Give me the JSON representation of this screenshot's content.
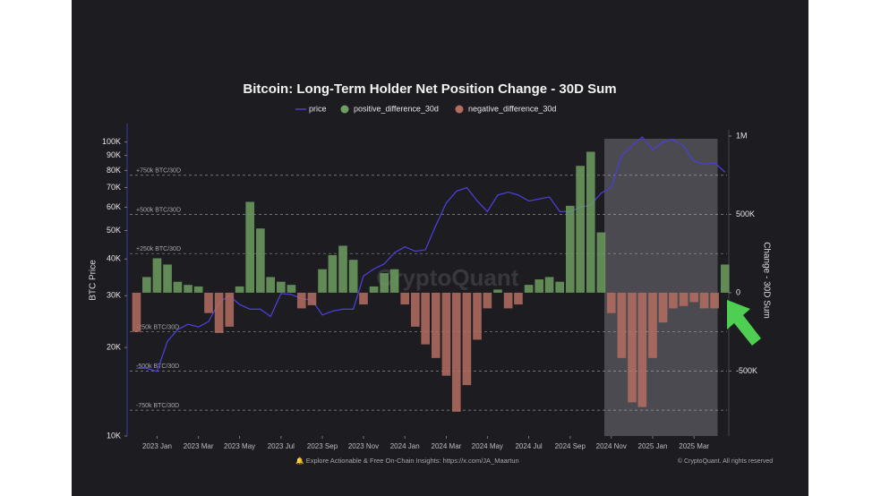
{
  "chart_data": {
    "type": "bar-line",
    "title": "Bitcoin: Long-Term Holder Net Position Change - 30D Sum",
    "y_label": "BTC Price",
    "y2_label": "Change - 30D Sum",
    "watermark": "CryptoQuant",
    "footer_left": "🔔 Explore Actionable & Free On-Chain Insights: https://x.com/JA_Maartun",
    "footer_right": "© CryptoQuant. All rights reserved",
    "log_y": true,
    "x": [
      2022.917,
      2022.958,
      2023.0,
      2023.042,
      2023.083,
      2023.125,
      2023.167,
      2023.208,
      2023.25,
      2023.292,
      2023.333,
      2023.375,
      2023.417,
      2023.458,
      2023.5,
      2023.542,
      2023.583,
      2023.625,
      2023.667,
      2023.708,
      2023.75,
      2023.792,
      2023.833,
      2023.875,
      2023.917,
      2023.958,
      2024.0,
      2024.042,
      2024.083,
      2024.125,
      2024.167,
      2024.208,
      2024.25,
      2024.292,
      2024.333,
      2024.375,
      2024.417,
      2024.458,
      2024.5,
      2024.542,
      2024.583,
      2024.625,
      2024.667,
      2024.708,
      2024.75,
      2024.792,
      2024.833,
      2024.875,
      2024.917,
      2024.958,
      2025.0,
      2025.042,
      2025.083,
      2025.125,
      2025.167,
      2025.208,
      2025.25,
      2025.292
    ],
    "series": [
      {
        "name": "price",
        "color": "#4b3fd6",
        "values": [
          17000,
          17000,
          16600,
          21000,
          23000,
          24000,
          23500,
          24500,
          28500,
          30000,
          28000,
          27000,
          27000,
          25500,
          30500,
          30300,
          29300,
          29000,
          25800,
          26600,
          27000,
          27000,
          35000,
          37000,
          38500,
          42000,
          44000,
          42500,
          43000,
          52000,
          62000,
          68000,
          70000,
          63000,
          58000,
          66000,
          67500,
          66000,
          63000,
          64000,
          65000,
          58000,
          58000,
          60000,
          61000,
          67000,
          70000,
          90000,
          97000,
          104000,
          94000,
          100000,
          102000,
          97000,
          86000,
          84000,
          85000,
          79000
        ]
      },
      {
        "name": "positive_difference_30d",
        "color": "#6f9e60",
        "axis": "y2",
        "values": [
          null,
          100000,
          220000,
          180000,
          70000,
          50000,
          40000,
          null,
          null,
          null,
          40000,
          580000,
          410000,
          100000,
          70000,
          50000,
          null,
          null,
          150000,
          240000,
          300000,
          210000,
          null,
          40000,
          125000,
          150000,
          null,
          null,
          null,
          null,
          null,
          null,
          null,
          null,
          null,
          20000,
          null,
          null,
          50000,
          85000,
          100000,
          70000,
          555000,
          810000,
          900000,
          385000,
          null,
          null,
          null,
          null,
          null,
          null,
          null,
          null,
          null,
          null,
          null,
          180000
        ]
      },
      {
        "name": "negative_difference_30d",
        "color": "#b46d62",
        "axis": "y2",
        "values": [
          -250000,
          null,
          null,
          null,
          null,
          null,
          null,
          -130000,
          -257000,
          -217000,
          null,
          null,
          null,
          null,
          null,
          null,
          -100000,
          -80000,
          null,
          null,
          null,
          null,
          -75000,
          null,
          null,
          null,
          -75000,
          -217000,
          -330000,
          -417000,
          -530000,
          -760000,
          -590000,
          -300000,
          -100000,
          null,
          -100000,
          -75000,
          null,
          null,
          null,
          null,
          null,
          null,
          null,
          null,
          -130000,
          -417000,
          -700000,
          -730000,
          -417000,
          -190000,
          -100000,
          -85000,
          -60000,
          -100000,
          -100000,
          null
        ]
      }
    ],
    "xlim": [
      2022.89,
      2025.3
    ],
    "xticks": [
      {
        "value": 2023.0,
        "label": "2023 Jan"
      },
      {
        "value": 2023.167,
        "label": "2023 Mar"
      },
      {
        "value": 2023.333,
        "label": "2023 May"
      },
      {
        "value": 2023.5,
        "label": "2023 Jul"
      },
      {
        "value": 2023.667,
        "label": "2023 Sep"
      },
      {
        "value": 2023.833,
        "label": "2023 Nov"
      },
      {
        "value": 2024.0,
        "label": "2024 Jan"
      },
      {
        "value": 2024.167,
        "label": "2024 Mar"
      },
      {
        "value": 2024.333,
        "label": "2024 May"
      },
      {
        "value": 2024.5,
        "label": "2024 Jul"
      },
      {
        "value": 2024.667,
        "label": "2024 Sep"
      },
      {
        "value": 2024.833,
        "label": "2024 Nov"
      },
      {
        "value": 2025.0,
        "label": "2025 Jan"
      },
      {
        "value": 2025.167,
        "label": "2025 Mar"
      }
    ],
    "ylim": [
      10000,
      110000
    ],
    "yticks": [
      {
        "value": 10000,
        "label": "10K"
      },
      {
        "value": 20000,
        "label": "20K"
      },
      {
        "value": 30000,
        "label": "30K"
      },
      {
        "value": 40000,
        "label": "40K"
      },
      {
        "value": 50000,
        "label": "50K"
      },
      {
        "value": 60000,
        "label": "60K"
      },
      {
        "value": 70000,
        "label": "70K"
      },
      {
        "value": 80000,
        "label": "80K"
      },
      {
        "value": 90000,
        "label": "90K"
      },
      {
        "value": 100000,
        "label": "100K"
      }
    ],
    "y2lim": [
      -915000,
      1040000
    ],
    "y2ticks": [
      {
        "value": 1000000,
        "label": "1M"
      },
      {
        "value": 500000,
        "label": "500K"
      },
      0,
      {
        "value": -500000,
        "label": "-500K"
      }
    ],
    "reference_lines": [
      {
        "value": 750000,
        "label": "+750k BTC/30D"
      },
      {
        "value": 500000,
        "label": "+500k BTC/30D"
      },
      {
        "value": 250000,
        "label": "+250k BTC/30D"
      },
      {
        "value": -250000,
        "label": "-250k BTC/30D"
      },
      {
        "value": -500000,
        "label": "-500k BTC/30D"
      },
      {
        "value": -750000,
        "label": "-750k BTC/30D"
      }
    ],
    "highlight_x": [
      2024.805,
      2025.262
    ]
  }
}
